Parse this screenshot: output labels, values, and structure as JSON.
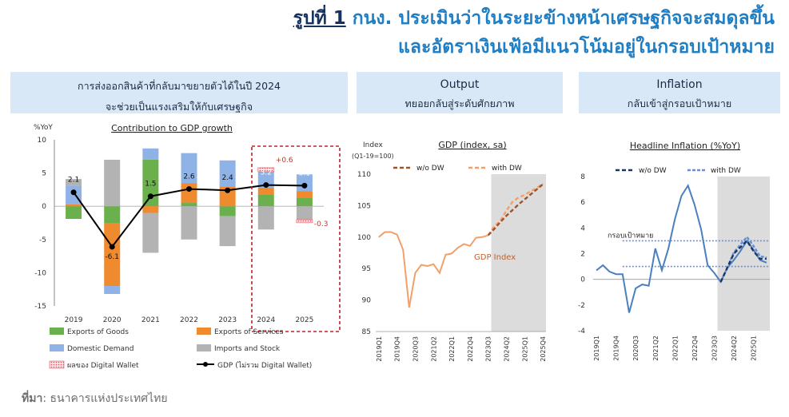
{
  "title": {
    "fig_label": "รูปที่ 1",
    "line1_rest": " กนง. ประเมินว่าในระยะข้างหน้าเศรษฐกิจจะสมดุลขึ้น",
    "line2": "และอัตราเงินเฟ้อมีแนวโน้มอยู่ในกรอบเป้าหมาย"
  },
  "panels": {
    "left": {
      "line1": "การส่งออกสินค้าที่กลับมาขยายตัวได้ในปี 2024",
      "line2": "จะช่วยเป็นแรงเสริมให้กับเศรษฐกิจ"
    },
    "middle": {
      "line1": "Output",
      "line2": "ทยอยกลับสู่ระดับศักยภาพ"
    },
    "right": {
      "line1": "Inflation",
      "line2": "กลับเข้าสู่กรอบเป้าหมาย"
    }
  },
  "source": {
    "label": "ที่มา",
    "text": ": ธนาคารแห่งประเทศไทย"
  },
  "colors": {
    "goods": "#6ab04c",
    "services": "#f08a2e",
    "domestic": "#8fb3e6",
    "imports": "#b3b3b3",
    "dw": "#e05561",
    "gdp_line": "#000000",
    "gdp_index": "#f2a06a",
    "wo_dw": "#a0522d",
    "with_dw": "#f2a06a",
    "inflation": "#4a7fc0",
    "target": "#6b8fd6",
    "shade": "#dcdcdc",
    "title": "#1f7fc4"
  },
  "chart_data": [
    {
      "type": "bar",
      "stacked": true,
      "title": "Contribution to GDP growth",
      "ylabel": "%YoY",
      "ylim": [
        -15,
        10
      ],
      "yticks": [
        10,
        5,
        0,
        -5,
        -10,
        -15
      ],
      "categories": [
        "2019",
        "2020",
        "2021",
        "2022",
        "2023",
        "2024",
        "2025"
      ],
      "series": [
        {
          "name": "Exports of Goods",
          "values": [
            -1.9,
            -2.5,
            7.0,
            0.5,
            -1.5,
            1.8,
            1.3
          ]
        },
        {
          "name": "Exports of Services",
          "values": [
            0.3,
            -9.5,
            -1.0,
            3.0,
            3.0,
            1.0,
            1.0
          ]
        },
        {
          "name": "Domestic Demand",
          "values": [
            2.8,
            -1.2,
            1.7,
            4.5,
            3.9,
            2.4,
            2.5
          ]
        },
        {
          "name": "Imports and Stock",
          "values": [
            1.0,
            7.0,
            -6.0,
            -5.0,
            -4.5,
            -3.5,
            -2.0
          ]
        },
        {
          "name": "ผลของ Digital Wallet",
          "values": [
            null,
            null,
            null,
            null,
            null,
            0.6,
            -0.3
          ]
        }
      ],
      "line": {
        "name": "GDP (ไม่รวม Digital Wallet)",
        "values": [
          2.1,
          -6.1,
          1.5,
          2.6,
          2.4,
          3.2,
          3.1
        ]
      },
      "data_labels": [
        "2.1",
        "-6.1",
        "1.5",
        "2.6",
        "2.4",
        "3.2",
        "3.1"
      ],
      "dw_labels": [
        "+0.6",
        "-0.3"
      ],
      "legend_position": "bottom"
    },
    {
      "type": "line",
      "title": "GDP (index, sa)",
      "ylabel": "Index",
      "ylabel_sub": "(Q1-19=100)",
      "ylim": [
        85,
        110
      ],
      "yticks": [
        110,
        105,
        100,
        95,
        90,
        85
      ],
      "xticks": [
        "2019Q1",
        "2019Q4",
        "2020Q3",
        "2021Q2",
        "2022Q1",
        "2022Q4",
        "2023Q3",
        "2024Q2",
        "2025Q1",
        "2025Q4"
      ],
      "annotation": "GDP Index",
      "forecast_shaded_from": "2023Q4",
      "series": [
        {
          "name": "GDP Index",
          "values": [
            100.0,
            100.8,
            100.8,
            100.4,
            98.0,
            88.8,
            94.3,
            95.6,
            95.4,
            95.7,
            94.3,
            97.2,
            97.4,
            98.3,
            98.9,
            98.6,
            99.9,
            100.0,
            100.3
          ]
        },
        {
          "name": "w/o DW",
          "values": [
            null,
            null,
            null,
            null,
            null,
            null,
            null,
            null,
            null,
            null,
            null,
            null,
            null,
            null,
            null,
            null,
            null,
            null,
            100.3,
            101.3,
            102.4,
            103.4,
            104.3,
            105.2,
            106.0,
            106.8,
            107.6,
            108.4
          ]
        },
        {
          "name": "with DW",
          "values": [
            null,
            null,
            null,
            null,
            null,
            null,
            null,
            null,
            null,
            null,
            null,
            null,
            null,
            null,
            null,
            null,
            null,
            null,
            100.3,
            101.7,
            102.6,
            104.2,
            105.6,
            106.3,
            106.7,
            107.3,
            107.8,
            108.5
          ]
        }
      ],
      "legend_position": "top"
    },
    {
      "type": "line",
      "title": "Headline Inflation (%YoY)",
      "ylim": [
        -4,
        8
      ],
      "yticks": [
        8,
        6,
        4,
        2,
        0,
        -2,
        -4
      ],
      "xticks": [
        "2019Q1",
        "2019Q4",
        "2020Q3",
        "2021Q2",
        "2022Q1",
        "2022Q4",
        "2023Q3",
        "2024Q2",
        "2025Q1"
      ],
      "target_band": [
        1,
        3
      ],
      "target_label": "กรอบเป้าหมาย",
      "forecast_shaded_from": "2023Q4",
      "series": [
        {
          "name": "Headline Inflation",
          "values": [
            0.7,
            1.1,
            0.6,
            0.4,
            0.4,
            -2.6,
            -0.7,
            -0.4,
            -0.5,
            2.4,
            0.7,
            2.4,
            4.7,
            6.5,
            7.3,
            5.8,
            3.9,
            1.1,
            0.5,
            -0.2,
            0.9,
            1.5,
            2.2,
            3.0,
            2.3,
            1.5,
            1.3
          ]
        },
        {
          "name": "w/o DW",
          "values": [
            null,
            null,
            null,
            null,
            null,
            null,
            null,
            null,
            null,
            null,
            null,
            null,
            null,
            null,
            null,
            null,
            null,
            null,
            null,
            -0.2,
            0.9,
            2.0,
            2.5,
            3.0,
            2.2,
            1.6,
            1.6
          ]
        },
        {
          "name": "with DW",
          "values": [
            null,
            null,
            null,
            null,
            null,
            null,
            null,
            null,
            null,
            null,
            null,
            null,
            null,
            null,
            null,
            null,
            null,
            null,
            null,
            -0.2,
            0.9,
            2.1,
            2.7,
            3.3,
            2.6,
            1.8,
            1.7
          ]
        }
      ],
      "legend_position": "top"
    }
  ]
}
